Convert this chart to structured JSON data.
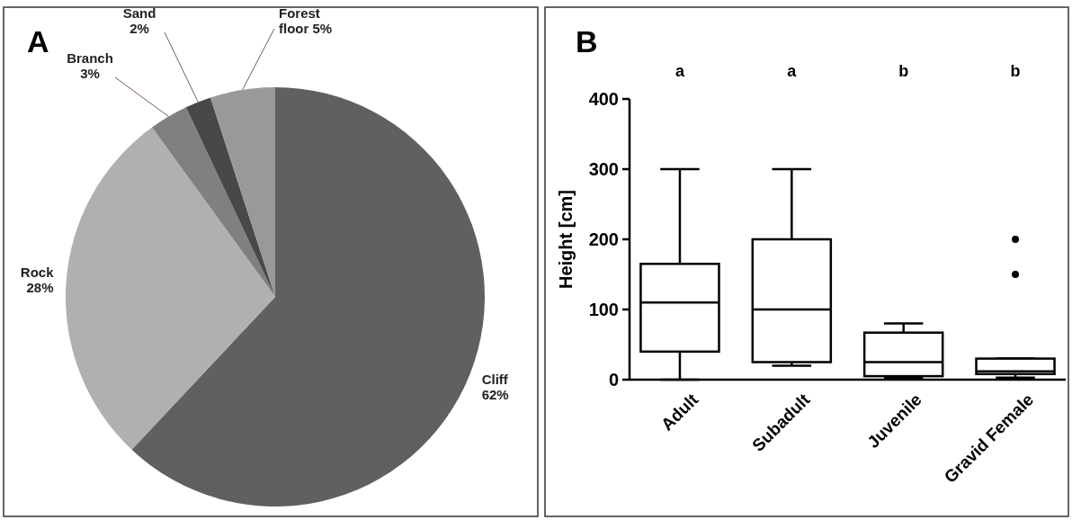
{
  "chart_data": [
    {
      "type": "pie",
      "title": "A",
      "categories": [
        "Cliff",
        "Rock",
        "Branch",
        "Sand",
        "Forest floor"
      ],
      "values": [
        62,
        28,
        3,
        2,
        5
      ],
      "colors": [
        "#606060",
        "#b0b0b0",
        "#808080",
        "#484848",
        "#999999"
      ],
      "value_labels": [
        "62%",
        "28%",
        "3%",
        "2%",
        "5%"
      ]
    },
    {
      "type": "box",
      "title": "B",
      "ylabel": "Height [cm]",
      "categories": [
        "Adult",
        "Subadult",
        "Juvenile",
        "Gravid Female"
      ],
      "ylim": [
        0,
        400
      ],
      "yticks": [
        0,
        100,
        200,
        300,
        400
      ],
      "boxes": [
        {
          "low": 0,
          "q1": 40,
          "median": 110,
          "q3": 165,
          "high": 300
        },
        {
          "low": 20,
          "q1": 25,
          "median": 100,
          "q3": 200,
          "high": 300
        },
        {
          "low": 3,
          "q1": 5,
          "median": 25,
          "q3": 67,
          "high": 80
        },
        {
          "low": 3,
          "q1": 8,
          "median": 12,
          "q3": 30,
          "high": 30,
          "outliers": [
            150,
            200
          ]
        }
      ],
      "annotations": [
        "a",
        "a",
        "b",
        "b"
      ]
    }
  ]
}
